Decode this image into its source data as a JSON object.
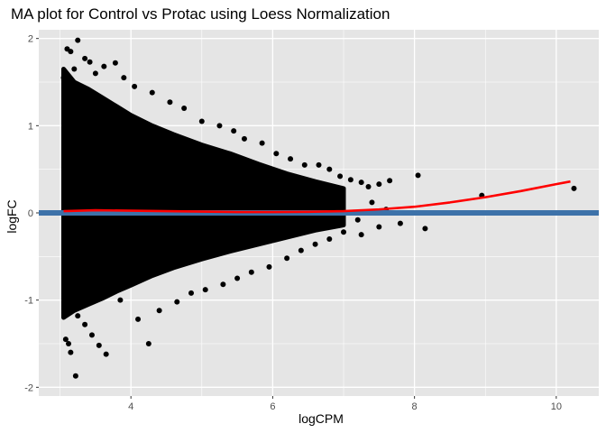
{
  "chart_data": {
    "type": "scatter",
    "title": "MA plot for Control vs Protac using Loess Normalization",
    "xlabel": "logCPM",
    "ylabel": "logFC",
    "xlim": [
      2.7,
      10.6
    ],
    "ylim": [
      -2.1,
      2.1
    ],
    "x_ticks": [
      4,
      6,
      8,
      10
    ],
    "y_ticks": [
      -2,
      -1,
      0,
      1,
      2
    ],
    "grid": true,
    "legend": "none",
    "colors": {
      "panel": "#e5e5e5",
      "grid": "#ffffff",
      "points": "#000000",
      "loess_curve": "#ff0000",
      "zero_line": "#3d72a9"
    },
    "envelope": {
      "x": [
        3.05,
        3.2,
        3.4,
        3.6,
        3.8,
        4.0,
        4.3,
        4.6,
        5.0,
        5.4,
        5.8,
        6.2,
        6.6,
        7.0
      ],
      "upper": [
        1.65,
        1.5,
        1.42,
        1.32,
        1.22,
        1.12,
        1.0,
        0.9,
        0.78,
        0.68,
        0.56,
        0.45,
        0.36,
        0.28
      ],
      "lower": [
        -1.2,
        -1.12,
        -1.05,
        -0.98,
        -0.9,
        -0.83,
        -0.72,
        -0.63,
        -0.53,
        -0.44,
        -0.36,
        -0.28,
        -0.2,
        -0.14
      ]
    },
    "points": [
      [
        3.25,
        1.98
      ],
      [
        3.1,
        1.88
      ],
      [
        3.15,
        1.85
      ],
      [
        3.35,
        1.77
      ],
      [
        3.42,
        1.73
      ],
      [
        3.62,
        1.68
      ],
      [
        3.78,
        1.72
      ],
      [
        3.2,
        1.65
      ],
      [
        3.5,
        1.6
      ],
      [
        3.9,
        1.55
      ],
      [
        3.05,
        1.55
      ],
      [
        4.05,
        1.45
      ],
      [
        4.3,
        1.38
      ],
      [
        4.55,
        1.27
      ],
      [
        4.75,
        1.2
      ],
      [
        5.0,
        1.05
      ],
      [
        5.25,
        1.0
      ],
      [
        5.45,
        0.94
      ],
      [
        5.6,
        0.85
      ],
      [
        5.85,
        0.8
      ],
      [
        6.05,
        0.68
      ],
      [
        6.25,
        0.62
      ],
      [
        6.45,
        0.55
      ],
      [
        6.65,
        0.55
      ],
      [
        6.8,
        0.5
      ],
      [
        6.95,
        0.42
      ],
      [
        7.1,
        0.38
      ],
      [
        7.25,
        0.35
      ],
      [
        7.35,
        0.3
      ],
      [
        7.5,
        0.33
      ],
      [
        7.65,
        0.37
      ],
      [
        8.05,
        0.43
      ],
      [
        7.4,
        0.12
      ],
      [
        7.6,
        0.04
      ],
      [
        7.2,
        -0.08
      ],
      [
        7.5,
        -0.16
      ],
      [
        7.25,
        -0.25
      ],
      [
        8.95,
        0.2
      ],
      [
        10.25,
        0.28
      ],
      [
        3.22,
        -1.87
      ],
      [
        3.15,
        -1.6
      ],
      [
        3.12,
        -1.5
      ],
      [
        3.08,
        -1.45
      ],
      [
        3.35,
        -1.28
      ],
      [
        3.45,
        -1.4
      ],
      [
        3.55,
        -1.52
      ],
      [
        3.65,
        -1.62
      ],
      [
        3.25,
        -1.18
      ],
      [
        4.25,
        -1.5
      ],
      [
        4.1,
        -1.22
      ],
      [
        4.4,
        -1.12
      ],
      [
        3.85,
        -1.0
      ],
      [
        4.65,
        -1.02
      ],
      [
        4.85,
        -0.92
      ],
      [
        5.05,
        -0.88
      ],
      [
        5.3,
        -0.82
      ],
      [
        5.5,
        -0.75
      ],
      [
        5.7,
        -0.68
      ],
      [
        5.95,
        -0.62
      ],
      [
        6.2,
        -0.52
      ],
      [
        6.4,
        -0.43
      ],
      [
        6.6,
        -0.36
      ],
      [
        6.8,
        -0.3
      ],
      [
        7.0,
        -0.22
      ],
      [
        7.8,
        -0.12
      ],
      [
        8.15,
        -0.18
      ]
    ],
    "loess_curve": {
      "x": [
        3.05,
        3.5,
        4.0,
        4.5,
        5.0,
        5.5,
        6.0,
        6.5,
        7.0,
        7.5,
        8.0,
        8.5,
        9.0,
        9.5,
        10.0,
        10.2
      ],
      "y": [
        0.02,
        0.03,
        0.025,
        0.02,
        0.015,
        0.01,
        0.01,
        0.012,
        0.02,
        0.04,
        0.07,
        0.12,
        0.18,
        0.25,
        0.33,
        0.36
      ]
    },
    "zero_line_y": 0
  }
}
